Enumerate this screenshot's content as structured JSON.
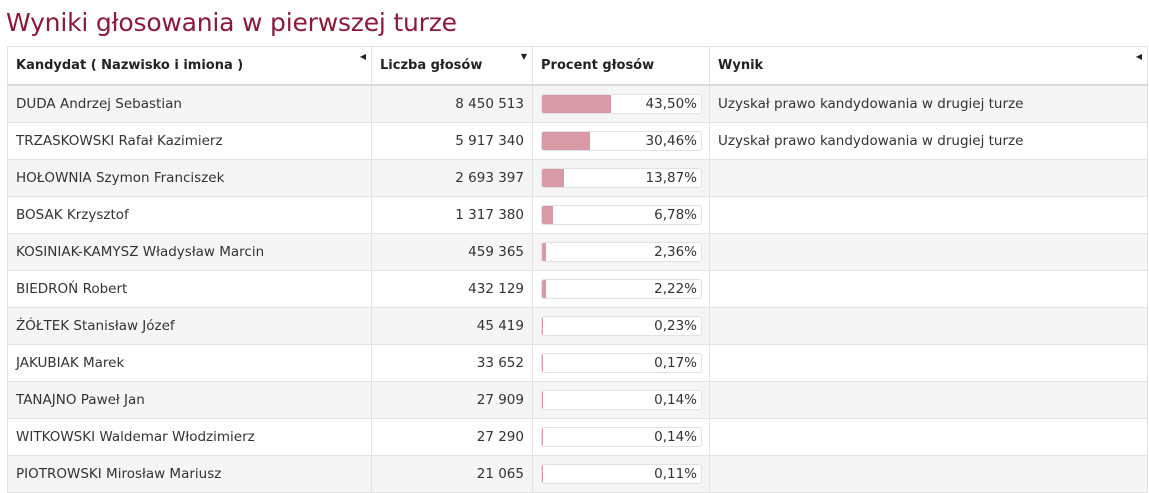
{
  "page": {
    "title": "Wyniki głosowania w pierwszej turze",
    "title_color": "#8b1a3a",
    "bar_color": "#d99aa8"
  },
  "table": {
    "columns": [
      {
        "label": "Kandydat ( Nazwisko i imiona )",
        "sort_icon": "triangle-left-icon",
        "sort_glyph": "◀"
      },
      {
        "label": "Liczba głosów",
        "sort_icon": "triangle-down-icon",
        "sort_glyph": "▼"
      },
      {
        "label": "Procent głosów",
        "sort_icon": "",
        "sort_glyph": ""
      },
      {
        "label": "Wynik",
        "sort_icon": "triangle-left-icon",
        "sort_glyph": "◀"
      }
    ],
    "rows": [
      {
        "name": "DUDA Andrzej Sebastian",
        "votes": "8 450 513",
        "percent": "43,50%",
        "percent_value": 43.5,
        "result": "Uzyskał prawo kandydowania w drugiej turze"
      },
      {
        "name": "TRZASKOWSKI Rafał Kazimierz",
        "votes": "5 917 340",
        "percent": "30,46%",
        "percent_value": 30.46,
        "result": "Uzyskał prawo kandydowania w drugiej turze"
      },
      {
        "name": "HOŁOWNIA Szymon Franciszek",
        "votes": "2 693 397",
        "percent": "13,87%",
        "percent_value": 13.87,
        "result": ""
      },
      {
        "name": "BOSAK Krzysztof",
        "votes": "1 317 380",
        "percent": "6,78%",
        "percent_value": 6.78,
        "result": ""
      },
      {
        "name": "KOSINIAK-KAMYSZ Władysław Marcin",
        "votes": "459 365",
        "percent": "2,36%",
        "percent_value": 2.36,
        "result": ""
      },
      {
        "name": "BIEDROŃ Robert",
        "votes": "432 129",
        "percent": "2,22%",
        "percent_value": 2.22,
        "result": ""
      },
      {
        "name": "ŻÓŁTEK Stanisław Józef",
        "votes": "45 419",
        "percent": "0,23%",
        "percent_value": 0.23,
        "result": ""
      },
      {
        "name": "JAKUBIAK Marek",
        "votes": "33 652",
        "percent": "0,17%",
        "percent_value": 0.17,
        "result": ""
      },
      {
        "name": "TANAJNO Paweł Jan",
        "votes": "27 909",
        "percent": "0,14%",
        "percent_value": 0.14,
        "result": ""
      },
      {
        "name": "WITKOWSKI Waldemar Włodzimierz",
        "votes": "27 290",
        "percent": "0,14%",
        "percent_value": 0.14,
        "result": ""
      },
      {
        "name": "PIOTROWSKI Mirosław Mariusz",
        "votes": "21 065",
        "percent": "0,11%",
        "percent_value": 0.11,
        "result": ""
      }
    ]
  }
}
